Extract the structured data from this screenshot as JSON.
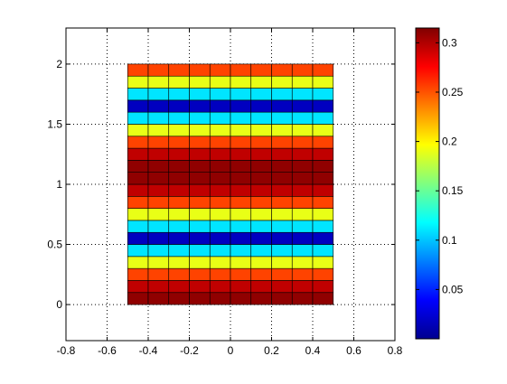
{
  "chart_data": {
    "type": "heatmap",
    "title": "",
    "xlabel": "",
    "ylabel": "",
    "xlim": [
      -0.8,
      0.8
    ],
    "ylim": [
      -0.3,
      2.3
    ],
    "grid": true,
    "x_ticks": [
      -0.8,
      -0.6,
      -0.4,
      -0.2,
      0,
      0.2,
      0.4,
      0.6,
      0.8
    ],
    "x_tick_labels": [
      "-0.8",
      "-0.6",
      "-0.4",
      "-0.2",
      "0",
      "0.2",
      "0.4",
      "0.6",
      "0.8"
    ],
    "y_ticks": [
      0,
      0.5,
      1,
      1.5,
      2
    ],
    "y_tick_labels": [
      "0",
      "0.5",
      "1",
      "1.5",
      "2"
    ],
    "colormap": "jet",
    "clim": [
      0,
      0.315
    ],
    "colorbar_ticks": [
      0.05,
      0.1,
      0.15,
      0.2,
      0.25,
      0.3
    ],
    "colorbar_tick_labels": [
      "0.05",
      "0.1",
      "0.15",
      "0.2",
      "0.25",
      "0.3"
    ],
    "x_edges": [
      -0.5,
      -0.4,
      -0.3,
      -0.2,
      -0.1,
      0,
      0.1,
      0.2,
      0.3,
      0.4,
      0.5
    ],
    "y_edges": [
      0,
      0.1,
      0.2,
      0.3,
      0.4,
      0.5,
      0.6,
      0.7,
      0.8,
      0.9,
      1.0,
      1.1,
      1.2,
      1.3,
      1.4,
      1.5,
      1.6,
      1.7,
      1.8,
      1.9,
      2.0
    ],
    "row_values": [
      0.31,
      0.295,
      0.255,
      0.19,
      0.11,
      0.02,
      0.11,
      0.19,
      0.255,
      0.295,
      0.31,
      0.31,
      0.295,
      0.255,
      0.19,
      0.11,
      0.02,
      0.11,
      0.19,
      0.255
    ],
    "colors": {
      "edge": "#000000",
      "grid": "#000000",
      "axis": "#000000"
    }
  }
}
